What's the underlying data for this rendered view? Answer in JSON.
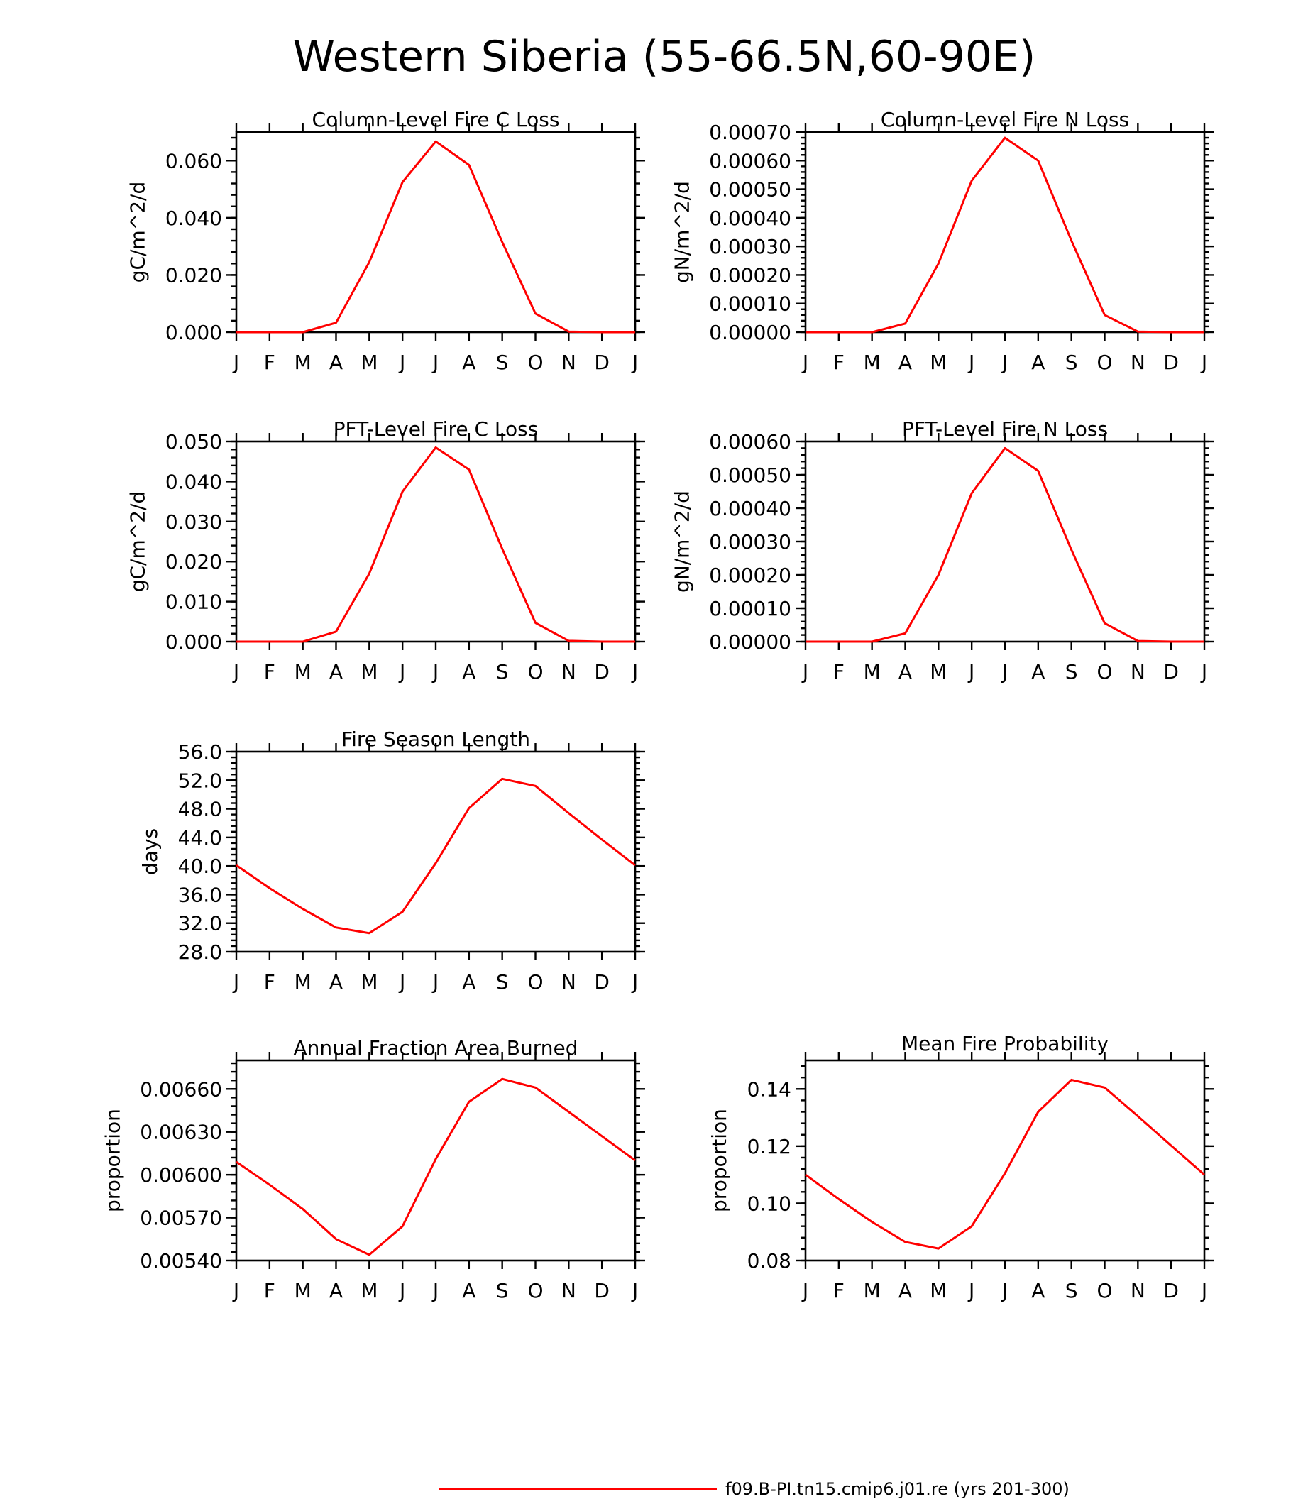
{
  "figure": {
    "title": "Western Siberia (55-66.5N,60-90E)",
    "legend": {
      "label": "f09.B-PI.tn15.cmip6.j01.re (yrs 201-300)",
      "color": "#ff0000"
    }
  },
  "chart_data": [
    {
      "type": "line",
      "title": "Column-Level Fire C Loss",
      "ylabel": "gC/m^2/d",
      "xlabel": "",
      "categories": [
        "J",
        "F",
        "M",
        "A",
        "M",
        "J",
        "J",
        "A",
        "S",
        "O",
        "N",
        "D",
        "J"
      ],
      "yticks": [
        "0.000",
        "0.020",
        "0.040",
        "0.060"
      ],
      "ytick_values": [
        0,
        0.02,
        0.04,
        0.06
      ],
      "ylim": [
        0,
        0.07
      ],
      "series": [
        {
          "values": [
            0,
            0,
            0,
            0.0033,
            0.0245,
            0.0525,
            0.0667,
            0.0585,
            0.0315,
            0.0065,
            0.0002,
            0,
            0
          ]
        }
      ]
    },
    {
      "type": "line",
      "title": "Column-Level Fire N Loss",
      "ylabel": "gN/m^2/d",
      "xlabel": "",
      "categories": [
        "J",
        "F",
        "M",
        "A",
        "M",
        "J",
        "J",
        "A",
        "S",
        "O",
        "N",
        "D",
        "J"
      ],
      "yticks": [
        "0.00000",
        "0.00010",
        "0.00020",
        "0.00030",
        "0.00040",
        "0.00050",
        "0.00060",
        "0.00070"
      ],
      "ytick_values": [
        0,
        0.0001,
        0.0002,
        0.0003,
        0.0004,
        0.0005,
        0.0006,
        0.0007
      ],
      "ylim": [
        0,
        0.0007
      ],
      "series": [
        {
          "values": [
            0,
            0,
            0,
            3e-05,
            0.00024,
            0.00053,
            0.00068,
            0.0006,
            0.00032,
            6e-05,
            2e-06,
            0,
            0
          ]
        }
      ]
    },
    {
      "type": "line",
      "title": "PFT-Level Fire C Loss",
      "ylabel": "gC/m^2/d",
      "xlabel": "",
      "categories": [
        "J",
        "F",
        "M",
        "A",
        "M",
        "J",
        "J",
        "A",
        "S",
        "O",
        "N",
        "D",
        "J"
      ],
      "yticks": [
        "0.000",
        "0.010",
        "0.020",
        "0.030",
        "0.040",
        "0.050"
      ],
      "ytick_values": [
        0,
        0.01,
        0.02,
        0.03,
        0.04,
        0.05
      ],
      "ylim": [
        0,
        0.05
      ],
      "series": [
        {
          "values": [
            0,
            0,
            0,
            0.0025,
            0.017,
            0.0375,
            0.0485,
            0.043,
            0.0232,
            0.0047,
            0.0002,
            0,
            0
          ]
        }
      ]
    },
    {
      "type": "line",
      "title": "PFT-Level Fire N Loss",
      "ylabel": "gN/m^2/d",
      "xlabel": "",
      "categories": [
        "J",
        "F",
        "M",
        "A",
        "M",
        "J",
        "J",
        "A",
        "S",
        "O",
        "N",
        "D",
        "J"
      ],
      "yticks": [
        "0.00000",
        "0.00010",
        "0.00020",
        "0.00030",
        "0.00040",
        "0.00050",
        "0.00060"
      ],
      "ytick_values": [
        0,
        0.0001,
        0.0002,
        0.0003,
        0.0004,
        0.0005,
        0.0006
      ],
      "ylim": [
        0,
        0.0006
      ],
      "series": [
        {
          "values": [
            0,
            0,
            0,
            2.5e-05,
            0.0002,
            0.000445,
            0.00058,
            0.000512,
            0.000275,
            5.5e-05,
            2e-06,
            0,
            0
          ]
        }
      ]
    },
    {
      "type": "line",
      "title": "Fire Season Length",
      "ylabel": "days",
      "xlabel": "",
      "categories": [
        "J",
        "F",
        "M",
        "A",
        "M",
        "J",
        "J",
        "A",
        "S",
        "O",
        "N",
        "D",
        "J"
      ],
      "yticks": [
        "28.0",
        "32.0",
        "36.0",
        "40.0",
        "44.0",
        "48.0",
        "52.0",
        "56.0"
      ],
      "ytick_values": [
        28,
        32,
        36,
        40,
        44,
        48,
        52,
        56
      ],
      "ylim": [
        28,
        56
      ],
      "series": [
        {
          "values": [
            40.1,
            36.9,
            34.0,
            31.4,
            30.6,
            33.6,
            40.4,
            48.1,
            52.2,
            51.2,
            47.4,
            43.7,
            40.1
          ]
        }
      ]
    },
    {
      "type": "line",
      "title": "Annual Fraction Area Burned",
      "ylabel": "proportion",
      "xlabel": "",
      "categories": [
        "J",
        "F",
        "M",
        "A",
        "M",
        "J",
        "J",
        "A",
        "S",
        "O",
        "N",
        "D",
        "J"
      ],
      "yticks": [
        "0.00540",
        "0.00570",
        "0.00600",
        "0.00630",
        "0.00660"
      ],
      "ytick_values": [
        0.0054,
        0.0057,
        0.006,
        0.0063,
        0.0066
      ],
      "ylim": [
        0.0054,
        0.0068
      ],
      "series": [
        {
          "values": [
            0.00609,
            0.00593,
            0.00576,
            0.00555,
            0.00544,
            0.00564,
            0.00611,
            0.00651,
            0.00667,
            0.00661,
            0.00644,
            0.00627,
            0.0061
          ]
        }
      ]
    },
    {
      "type": "line",
      "title": "Mean Fire Probability",
      "ylabel": "proportion",
      "xlabel": "",
      "categories": [
        "J",
        "F",
        "M",
        "A",
        "M",
        "J",
        "J",
        "A",
        "S",
        "O",
        "N",
        "D",
        "J"
      ],
      "yticks": [
        "0.08",
        "0.10",
        "0.12",
        "0.14"
      ],
      "ytick_values": [
        0.08,
        0.1,
        0.12,
        0.14
      ],
      "ylim": [
        0.08,
        0.15
      ],
      "series": [
        {
          "values": [
            0.11,
            0.1015,
            0.0935,
            0.0865,
            0.0842,
            0.092,
            0.1105,
            0.132,
            0.1432,
            0.1405,
            0.1305,
            0.1202,
            0.11
          ]
        }
      ]
    }
  ]
}
